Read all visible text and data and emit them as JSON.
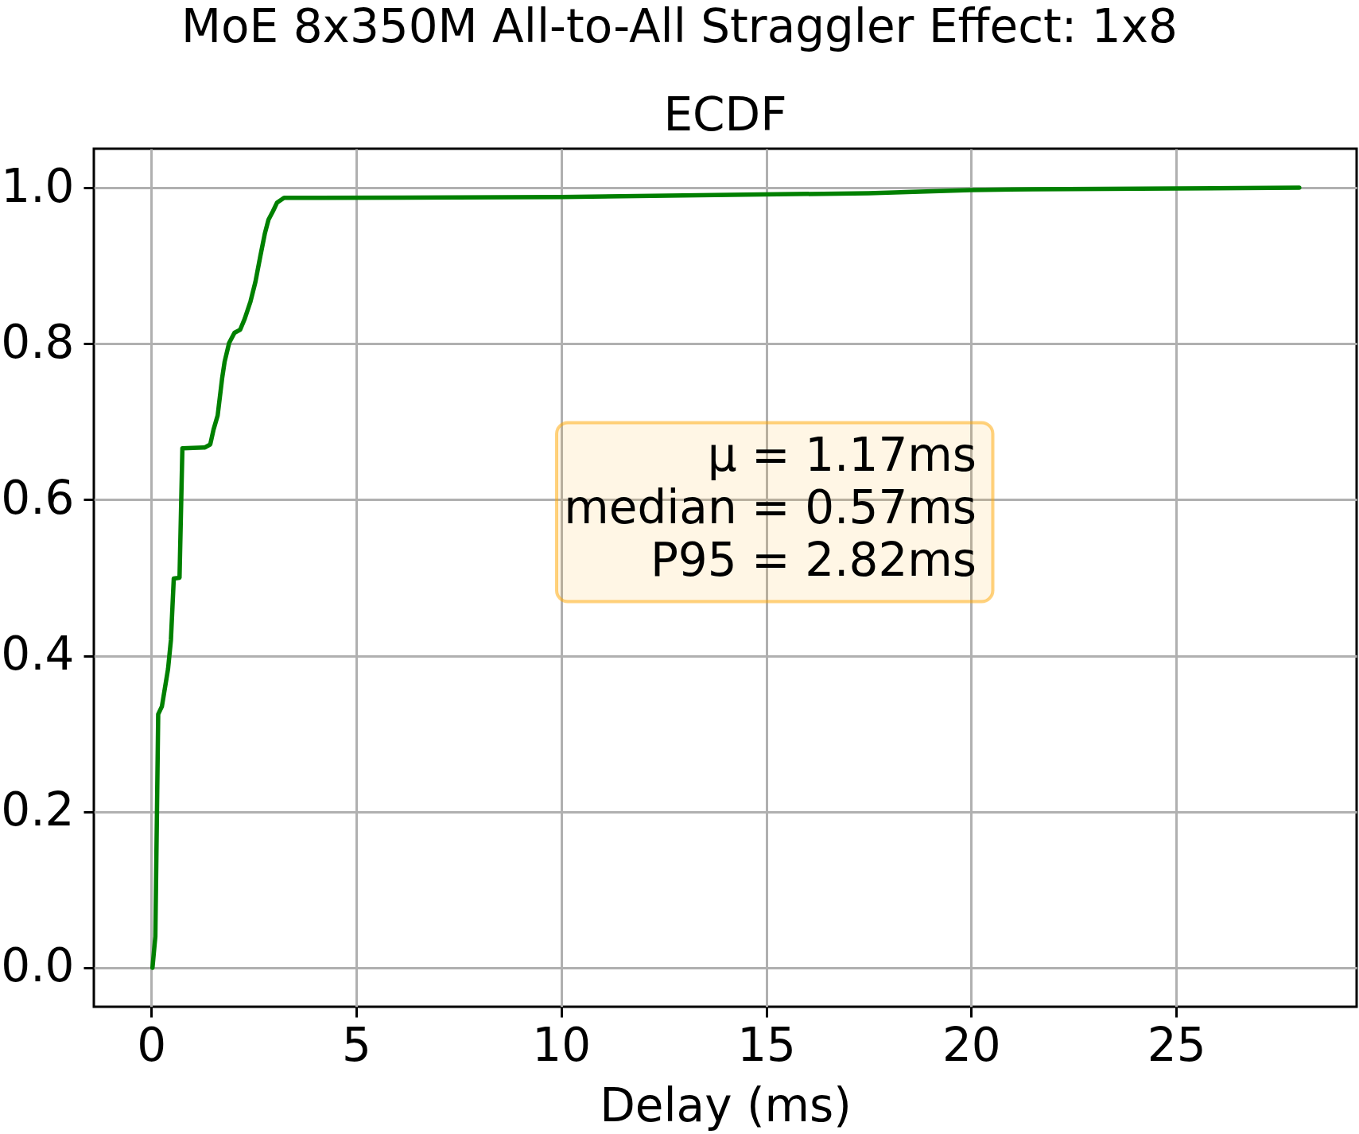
{
  "chart_data": {
    "type": "line",
    "title": "MoE 8x350M All-to-All Straggler Effect: 1x8",
    "subtitle": "ECDF",
    "xlabel": "Delay (ms)",
    "x": [
      0.03,
      0.1,
      0.14,
      0.17,
      0.26,
      0.41,
      0.48,
      0.55,
      0.69,
      0.76,
      1.31,
      1.44,
      1.52,
      1.62,
      1.73,
      1.79,
      1.9,
      2.03,
      2.17,
      2.28,
      2.42,
      2.54,
      2.66,
      2.77,
      2.86,
      2.97,
      3.07,
      3.24,
      4.07,
      10,
      14.5,
      17.5,
      20,
      21.5,
      25,
      28
    ],
    "series": [
      {
        "color": "#008000",
        "values": [
          0,
          0.04,
          0.2,
          0.325,
          0.335,
          0.383,
          0.42,
          0.499,
          0.5,
          0.666,
          0.667,
          0.671,
          0.69,
          0.708,
          0.756,
          0.777,
          0.801,
          0.814,
          0.818,
          0.832,
          0.854,
          0.879,
          0.912,
          0.941,
          0.959,
          0.97,
          0.981,
          0.987,
          0.987,
          0.988,
          0.991,
          0.993,
          0.997,
          0.998,
          0.999,
          1.0
        ]
      }
    ],
    "xlim": [
      -1.4,
      29.4
    ],
    "ylim": [
      -0.05,
      1.05
    ],
    "xticks": [
      0,
      5,
      10,
      15,
      20,
      25
    ],
    "yticks": [
      {
        "value": 0,
        "label": "0.0"
      },
      0.2,
      0.4,
      0.6,
      0.8,
      {
        "value": 1,
        "label": "1.0"
      }
    ],
    "annotations": [
      "μ = 1.17ms",
      "median = 0.57ms",
      "P95 = 2.82ms"
    ],
    "grid": true,
    "line_style": "solid"
  }
}
